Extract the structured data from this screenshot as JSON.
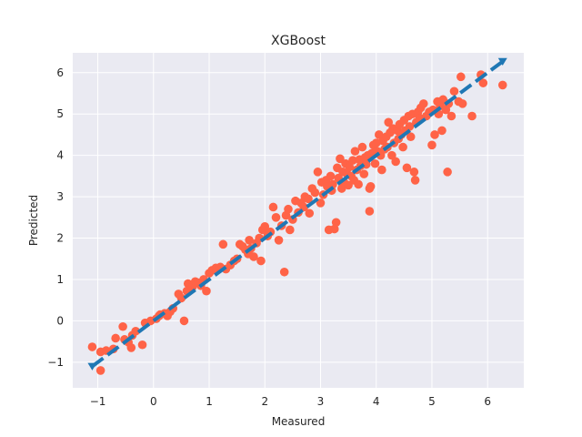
{
  "chart_data": {
    "type": "scatter",
    "title": "XGBoost",
    "xlabel": "Measured",
    "ylabel": "Predicted",
    "xlim": [
      -1.45,
      6.65
    ],
    "ylim": [
      -1.62,
      6.48
    ],
    "xticks": [
      -1,
      0,
      1,
      2,
      3,
      4,
      5,
      6
    ],
    "yticks": [
      -1,
      0,
      1,
      2,
      3,
      4,
      5,
      6
    ],
    "grid": true,
    "colors": {
      "background": "#eaeaf2",
      "grid": "#ffffff",
      "points": "#ff6347",
      "identity_line": "#1f77b4"
    },
    "identity_line": {
      "from": [
        -1.1,
        -1.1
      ],
      "to": [
        6.27,
        6.27
      ],
      "style": "dashed",
      "end_marker": "triangle-down"
    },
    "series": [
      {
        "points": [
          [
            -1.1,
            -0.63
          ],
          [
            -0.95,
            -1.2
          ],
          [
            -0.95,
            -0.75
          ],
          [
            -0.85,
            -0.72
          ],
          [
            -0.72,
            -0.68
          ],
          [
            -0.68,
            -0.42
          ],
          [
            -0.52,
            -0.45
          ],
          [
            -0.55,
            -0.14
          ],
          [
            -0.45,
            -0.52
          ],
          [
            -0.4,
            -0.65
          ],
          [
            -0.38,
            -0.35
          ],
          [
            -0.32,
            -0.25
          ],
          [
            -0.2,
            -0.58
          ],
          [
            -0.15,
            -0.05
          ],
          [
            -0.05,
            0.0
          ],
          [
            0.05,
            0.05
          ],
          [
            0.1,
            0.12
          ],
          [
            0.12,
            0.15
          ],
          [
            0.2,
            0.18
          ],
          [
            0.25,
            0.12
          ],
          [
            0.3,
            0.22
          ],
          [
            0.35,
            0.3
          ],
          [
            0.45,
            0.65
          ],
          [
            0.5,
            0.55
          ],
          [
            0.55,
            0.0
          ],
          [
            0.6,
            0.72
          ],
          [
            0.62,
            0.9
          ],
          [
            0.7,
            0.82
          ],
          [
            0.75,
            0.95
          ],
          [
            0.8,
            0.92
          ],
          [
            0.85,
            0.85
          ],
          [
            0.9,
            1.0
          ],
          [
            0.95,
            0.72
          ],
          [
            1.0,
            1.15
          ],
          [
            1.05,
            1.22
          ],
          [
            1.12,
            1.28
          ],
          [
            1.2,
            1.3
          ],
          [
            1.25,
            1.85
          ],
          [
            1.3,
            1.25
          ],
          [
            1.38,
            1.35
          ],
          [
            1.45,
            1.45
          ],
          [
            1.5,
            1.5
          ],
          [
            1.55,
            1.85
          ],
          [
            1.6,
            1.8
          ],
          [
            1.65,
            1.72
          ],
          [
            1.7,
            1.62
          ],
          [
            1.72,
            1.95
          ],
          [
            1.75,
            1.75
          ],
          [
            1.8,
            1.55
          ],
          [
            1.85,
            1.88
          ],
          [
            1.9,
            2.0
          ],
          [
            1.93,
            1.45
          ],
          [
            1.96,
            2.2
          ],
          [
            2.0,
            2.28
          ],
          [
            2.05,
            2.05
          ],
          [
            2.1,
            2.15
          ],
          [
            2.15,
            2.75
          ],
          [
            2.2,
            2.5
          ],
          [
            2.25,
            1.95
          ],
          [
            2.3,
            2.3
          ],
          [
            2.35,
            1.18
          ],
          [
            2.38,
            2.55
          ],
          [
            2.42,
            2.7
          ],
          [
            2.45,
            2.2
          ],
          [
            2.5,
            2.45
          ],
          [
            2.55,
            2.9
          ],
          [
            2.6,
            2.62
          ],
          [
            2.65,
            2.85
          ],
          [
            2.7,
            2.75
          ],
          [
            2.72,
            3.0
          ],
          [
            2.78,
            2.95
          ],
          [
            2.8,
            2.6
          ],
          [
            2.85,
            3.2
          ],
          [
            2.9,
            3.1
          ],
          [
            2.95,
            3.6
          ],
          [
            3.0,
            2.85
          ],
          [
            3.02,
            3.35
          ],
          [
            3.05,
            3.05
          ],
          [
            3.1,
            3.4
          ],
          [
            3.12,
            3.25
          ],
          [
            3.15,
            2.2
          ],
          [
            3.18,
            3.5
          ],
          [
            3.2,
            3.15
          ],
          [
            3.22,
            3.3
          ],
          [
            3.25,
            2.22
          ],
          [
            3.28,
            2.38
          ],
          [
            3.3,
            3.7
          ],
          [
            3.32,
            3.45
          ],
          [
            3.35,
            3.92
          ],
          [
            3.38,
            3.2
          ],
          [
            3.4,
            3.6
          ],
          [
            3.42,
            3.35
          ],
          [
            3.45,
            3.8
          ],
          [
            3.48,
            3.55
          ],
          [
            3.5,
            3.28
          ],
          [
            3.52,
            3.72
          ],
          [
            3.55,
            3.5
          ],
          [
            3.58,
            3.88
          ],
          [
            3.6,
            3.4
          ],
          [
            3.62,
            4.1
          ],
          [
            3.65,
            3.65
          ],
          [
            3.68,
            3.3
          ],
          [
            3.7,
            3.9
          ],
          [
            3.72,
            3.75
          ],
          [
            3.75,
            4.2
          ],
          [
            3.78,
            3.55
          ],
          [
            3.8,
            3.95
          ],
          [
            3.82,
            3.78
          ],
          [
            3.85,
            4.0
          ],
          [
            3.88,
            3.2
          ],
          [
            3.88,
            2.65
          ],
          [
            3.9,
            3.25
          ],
          [
            3.92,
            4.05
          ],
          [
            3.95,
            4.25
          ],
          [
            3.98,
            3.8
          ],
          [
            4.0,
            4.3
          ],
          [
            4.02,
            4.1
          ],
          [
            4.05,
            4.5
          ],
          [
            4.08,
            4.0
          ],
          [
            4.1,
            3.65
          ],
          [
            4.12,
            4.35
          ],
          [
            4.15,
            4.15
          ],
          [
            4.18,
            4.45
          ],
          [
            4.2,
            4.2
          ],
          [
            4.22,
            4.8
          ],
          [
            4.25,
            4.55
          ],
          [
            4.28,
            4.0
          ],
          [
            4.3,
            4.65
          ],
          [
            4.32,
            4.3
          ],
          [
            4.35,
            3.85
          ],
          [
            4.38,
            4.6
          ],
          [
            4.4,
            4.4
          ],
          [
            4.42,
            4.75
          ],
          [
            4.45,
            4.5
          ],
          [
            4.48,
            4.2
          ],
          [
            4.5,
            4.85
          ],
          [
            4.52,
            4.6
          ],
          [
            4.55,
            3.7
          ],
          [
            4.58,
            4.95
          ],
          [
            4.6,
            4.7
          ],
          [
            4.62,
            4.45
          ],
          [
            4.65,
            5.0
          ],
          [
            4.68,
            3.6
          ],
          [
            4.7,
            3.4
          ],
          [
            4.72,
            4.8
          ],
          [
            4.75,
            5.05
          ],
          [
            4.78,
            4.9
          ],
          [
            4.8,
            5.15
          ],
          [
            4.85,
            5.25
          ],
          [
            4.9,
            4.95
          ],
          [
            4.95,
            5.05
          ],
          [
            5.0,
            4.25
          ],
          [
            5.02,
            5.1
          ],
          [
            5.05,
            4.5
          ],
          [
            5.1,
            5.3
          ],
          [
            5.12,
            5.0
          ],
          [
            5.15,
            5.2
          ],
          [
            5.18,
            4.6
          ],
          [
            5.2,
            5.35
          ],
          [
            5.25,
            5.1
          ],
          [
            5.28,
            3.6
          ],
          [
            5.3,
            5.25
          ],
          [
            5.35,
            4.95
          ],
          [
            5.4,
            5.55
          ],
          [
            5.48,
            5.3
          ],
          [
            5.52,
            5.9
          ],
          [
            5.55,
            5.25
          ],
          [
            5.72,
            4.95
          ],
          [
            5.88,
            5.95
          ],
          [
            5.92,
            5.75
          ],
          [
            6.27,
            5.7
          ]
        ]
      }
    ]
  }
}
